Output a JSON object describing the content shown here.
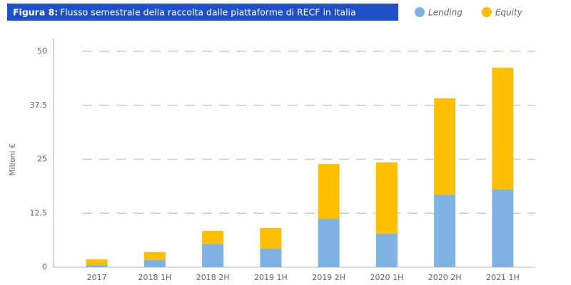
{
  "chart_data": {
    "type": "stacked_bar",
    "title_prefix": "Figura 8:",
    "title": "Flusso semestrale della raccolta dalle piattaforme di RECF in Italia",
    "y_label": "Milioni €",
    "categories": [
      "2017",
      "2018 1H",
      "2018 2H",
      "2019 1H",
      "2019 2H",
      "2020 1H",
      "2020 2H",
      "2021 1H"
    ],
    "series": [
      {
        "name": "Lending",
        "color": "#7fb2e5",
        "values": [
          0.5,
          1.7,
          5.4,
          4.3,
          11.2,
          7.8,
          16.8,
          18.0
        ]
      },
      {
        "name": "Equity",
        "color": "#ffbe00",
        "values": [
          1.3,
          1.8,
          3.0,
          4.8,
          12.7,
          16.5,
          22.3,
          28.2
        ]
      }
    ],
    "ylim": [
      0,
      50
    ],
    "yticks": [
      0,
      12.5,
      25,
      37.5,
      50
    ],
    "grid": true
  }
}
